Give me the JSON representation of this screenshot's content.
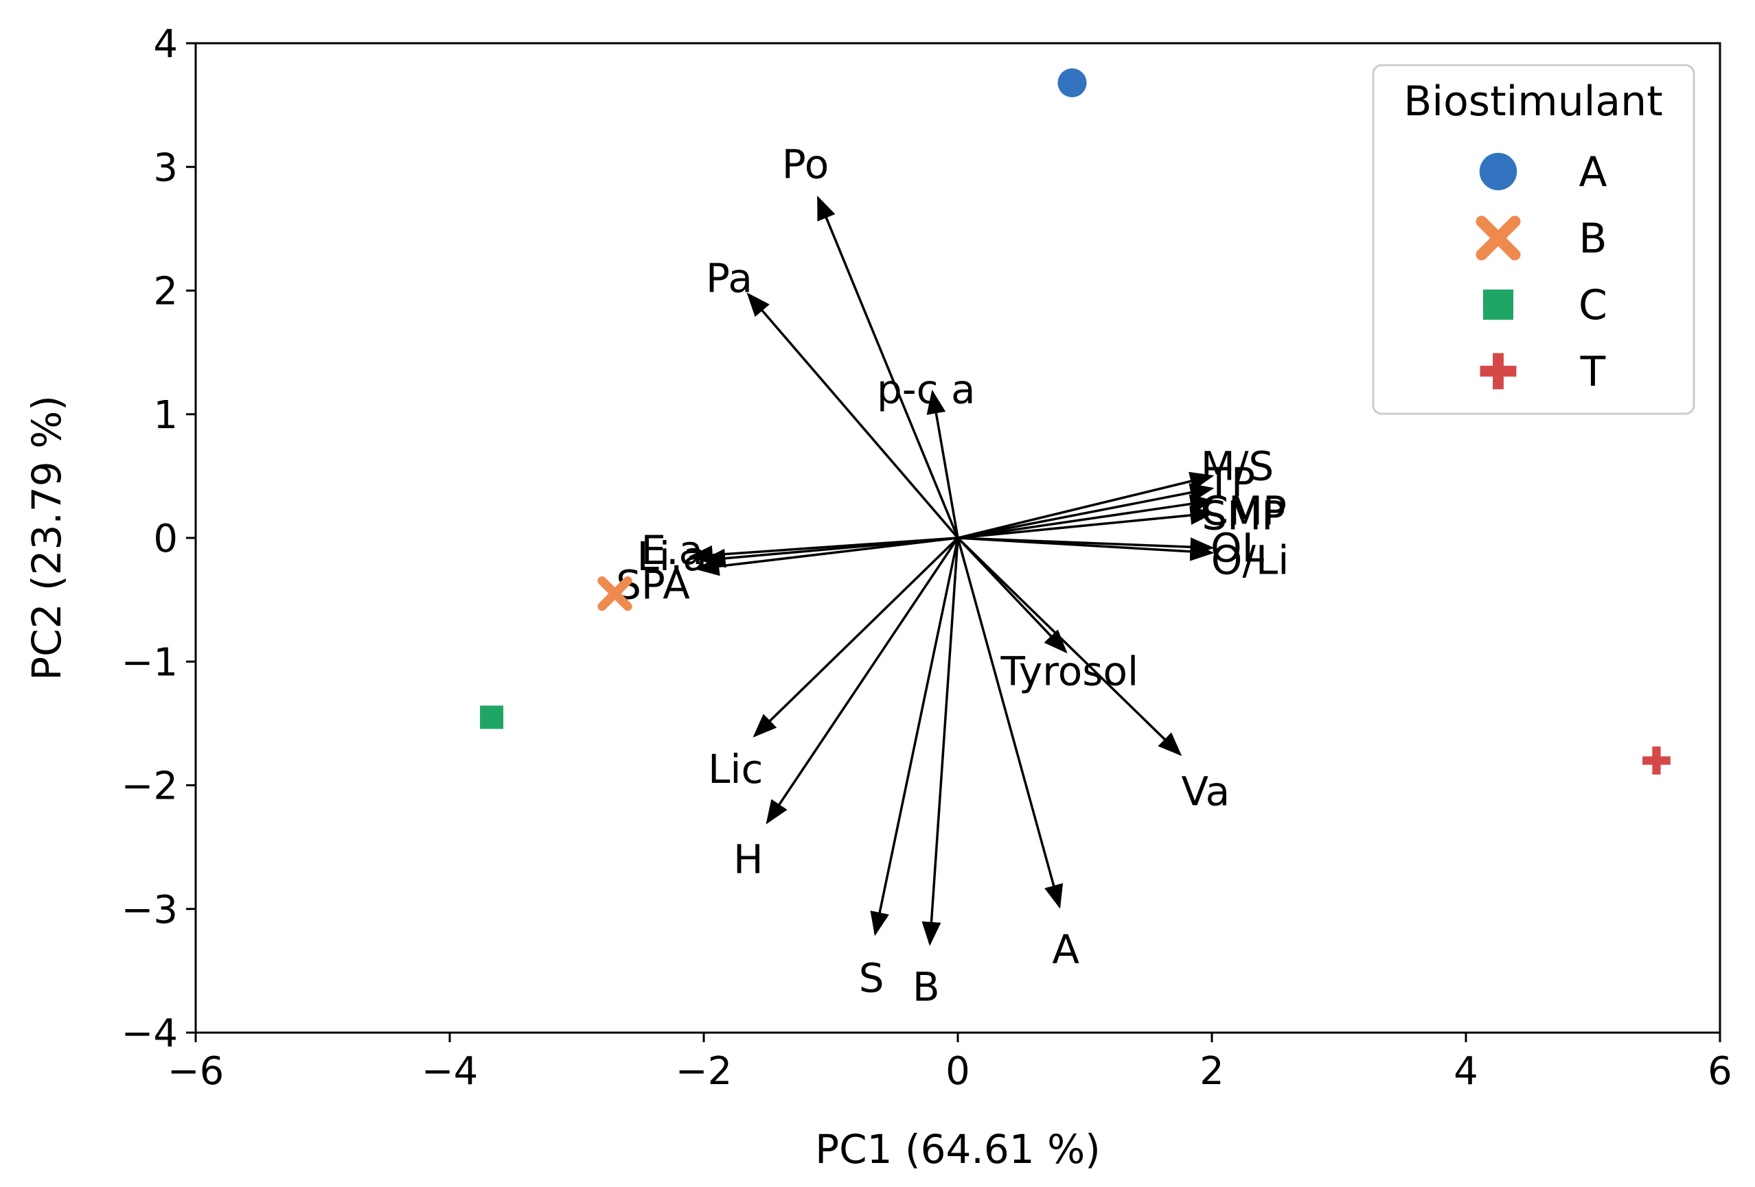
{
  "chart_data": {
    "type": "scatter",
    "subtype": "biplot",
    "xlabel": "PC1 (64.61 %)",
    "ylabel": "PC2 (23.79 %)",
    "xlim": [
      -6,
      6
    ],
    "ylim": [
      -4,
      4
    ],
    "xticks": [
      -6,
      -4,
      -2,
      0,
      2,
      4,
      6
    ],
    "yticks": [
      -4,
      -3,
      -2,
      -1,
      0,
      1,
      2,
      3,
      4
    ],
    "xtick_labels": [
      "−6",
      "−4",
      "−2",
      "0",
      "2",
      "4",
      "6"
    ],
    "ytick_labels": [
      "−4",
      "−3",
      "−2",
      "−1",
      "0",
      "1",
      "2",
      "3",
      "4"
    ],
    "grid": false,
    "legend": {
      "title": "Biostimulant",
      "placement": "top-right",
      "entries": [
        {
          "label": "A",
          "marker": "circle",
          "color": "#3274c0"
        },
        {
          "label": "B",
          "marker": "x",
          "color": "#ef8a4f"
        },
        {
          "label": "C",
          "marker": "square",
          "color": "#1fa564"
        },
        {
          "label": "T",
          "marker": "plus",
          "color": "#d44848"
        }
      ]
    },
    "points": [
      {
        "group": "A",
        "x": 0.9,
        "y": 3.68
      },
      {
        "group": "B",
        "x": -2.7,
        "y": -0.45
      },
      {
        "group": "C",
        "x": -3.67,
        "y": -1.45
      },
      {
        "group": "T",
        "x": 5.5,
        "y": -1.8
      }
    ],
    "loadings": [
      {
        "label": "Po",
        "x": -1.1,
        "y": 2.75,
        "lx": -1.2,
        "ly": 3.02
      },
      {
        "label": "Pa",
        "x": -1.65,
        "y": 1.97,
        "lx": -1.8,
        "ly": 2.1
      },
      {
        "label": "p-c a",
        "x": -0.2,
        "y": 1.18,
        "lx": -0.25,
        "ly": 1.2
      },
      {
        "label": "M/S",
        "x": 2.0,
        "y": 0.5,
        "lx": 2.2,
        "ly": 0.58
      },
      {
        "label": "TP",
        "x": 2.0,
        "y": 0.4,
        "lx": 2.15,
        "ly": 0.45
      },
      {
        "label": "CMP",
        "x": 2.0,
        "y": 0.3,
        "lx": 2.25,
        "ly": 0.22
      },
      {
        "label": "SMP",
        "x": 2.0,
        "y": 0.2,
        "lx": 2.25,
        "ly": 0.18
      },
      {
        "label": "OL",
        "x": 2.0,
        "y": -0.08,
        "lx": 2.2,
        "ly": -0.08
      },
      {
        "label": "O/Li",
        "x": 2.0,
        "y": -0.12,
        "lx": 2.3,
        "ly": -0.18
      },
      {
        "label": "E.a",
        "x": -2.1,
        "y": -0.15,
        "lx": -2.25,
        "ly": -0.1
      },
      {
        "label": "Li.a",
        "x": -2.0,
        "y": -0.18,
        "lx": -2.25,
        "ly": -0.15
      },
      {
        "label": "SPA",
        "x": -2.05,
        "y": -0.25,
        "lx": -2.4,
        "ly": -0.38
      },
      {
        "label": "Tyrosol",
        "x": 0.85,
        "y": -0.92,
        "lx": 0.88,
        "ly": -1.08
      },
      {
        "label": "Va",
        "x": 1.75,
        "y": -1.75,
        "lx": 1.95,
        "ly": -2.05
      },
      {
        "label": "Lic",
        "x": -1.6,
        "y": -1.6,
        "lx": -1.75,
        "ly": -1.87
      },
      {
        "label": "H",
        "x": -1.5,
        "y": -2.3,
        "lx": -1.65,
        "ly": -2.6
      },
      {
        "label": "S",
        "x": -0.65,
        "y": -3.2,
        "lx": -0.68,
        "ly": -3.56
      },
      {
        "label": "B",
        "x": -0.22,
        "y": -3.28,
        "lx": -0.25,
        "ly": -3.63
      },
      {
        "label": "A",
        "x": 0.8,
        "y": -2.98,
        "lx": 0.85,
        "ly": -3.33
      }
    ]
  }
}
